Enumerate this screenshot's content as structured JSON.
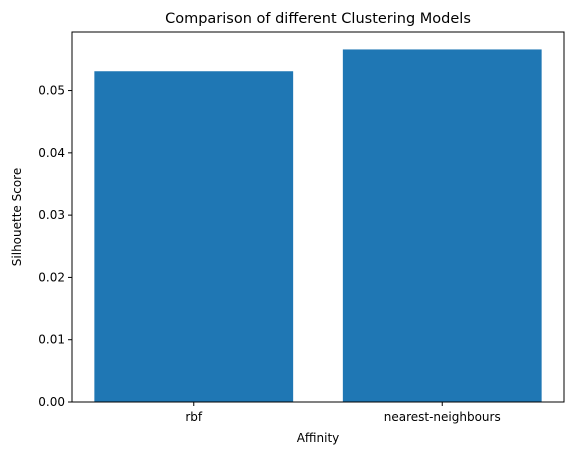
{
  "chart_data": {
    "type": "bar",
    "title": "Comparison of different Clustering Models",
    "xlabel": "Affinity",
    "ylabel": "Silhouette Score",
    "categories": [
      "rbf",
      "nearest-neighbours"
    ],
    "values": [
      0.0531,
      0.0566
    ],
    "ylim": [
      0,
      0.0594
    ],
    "yticks": [
      0.0,
      0.01,
      0.02,
      0.03,
      0.04,
      0.05
    ],
    "ytick_labels": [
      "0.00",
      "0.01",
      "0.02",
      "0.03",
      "0.04",
      "0.05"
    ],
    "grid": false,
    "bar_color": "#1f77b4"
  }
}
